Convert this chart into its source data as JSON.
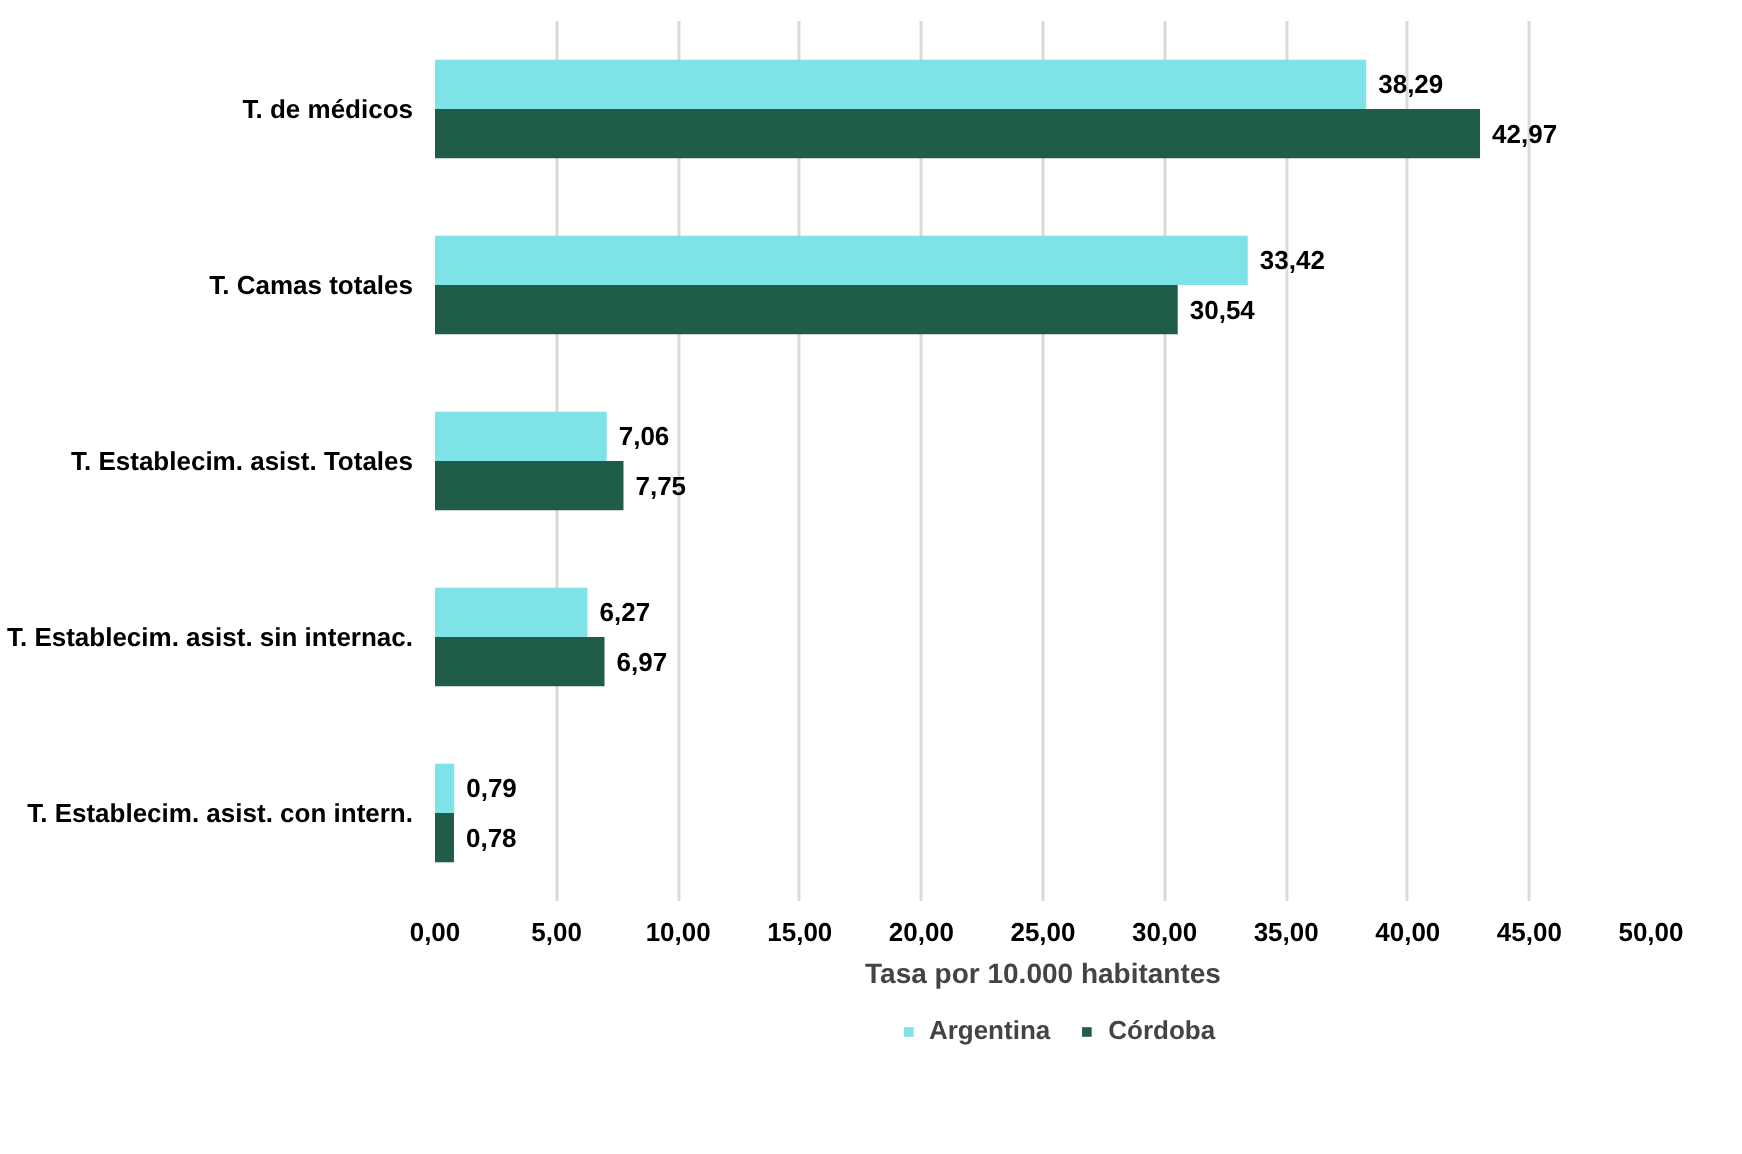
{
  "chart_data": {
    "type": "bar",
    "orientation": "horizontal",
    "categories": [
      "T. de médicos",
      "T. Camas totales",
      "T. Establecim. asist. Totales",
      "T. Establecim. asist. sin internac.",
      "T. Establecim. asist. con intern."
    ],
    "series": [
      {
        "name": "Argentina",
        "color": "#7de3e8",
        "values": [
          38.29,
          33.42,
          7.06,
          6.27,
          0.79
        ],
        "value_labels": [
          "38,29",
          "33,42",
          "7,06",
          "6,27",
          "0,79"
        ]
      },
      {
        "name": "Córdoba",
        "color": "#1f5c4a",
        "values": [
          42.97,
          30.54,
          7.75,
          6.97,
          0.78
        ],
        "value_labels": [
          "42,97",
          "30,54",
          "7,75",
          "6,97",
          "0,78"
        ]
      }
    ],
    "xlabel": "Tasa por 10.000 habitantes",
    "xlim": [
      0,
      50
    ],
    "xticks": [
      {
        "value": 0,
        "label": "0,00"
      },
      {
        "value": 5,
        "label": "5,00"
      },
      {
        "value": 10,
        "label": "10,00"
      },
      {
        "value": 15,
        "label": "15,00"
      },
      {
        "value": 20,
        "label": "20,00"
      },
      {
        "value": 25,
        "label": "25,00"
      },
      {
        "value": 30,
        "label": "30,00"
      },
      {
        "value": 35,
        "label": "35,00"
      },
      {
        "value": 40,
        "label": "40,00"
      },
      {
        "value": 45,
        "label": "45,00"
      },
      {
        "value": 50,
        "label": "50,00"
      }
    ],
    "grid": "x",
    "legend": "bottom"
  }
}
